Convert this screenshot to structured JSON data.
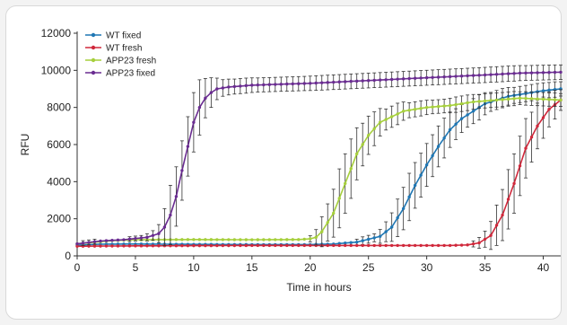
{
  "chart_data": {
    "type": "line",
    "xlabel": "Time in hours",
    "ylabel": "RFU",
    "xlim": [
      0,
      41.5
    ],
    "ylim": [
      0,
      12000
    ],
    "xticks": [
      0,
      5,
      10,
      15,
      20,
      25,
      30,
      35,
      40
    ],
    "yticks": [
      0,
      2000,
      4000,
      6000,
      8000,
      10000,
      12000
    ],
    "legend_position": "top-left",
    "grid": false,
    "x_step": 0.5,
    "series": [
      {
        "name": "WT fixed",
        "color": "#1f77b4",
        "error_bars": true,
        "anchors": [
          [
            0,
            580
          ],
          [
            2,
            630
          ],
          [
            5,
            640
          ],
          [
            10,
            620
          ],
          [
            15,
            610
          ],
          [
            20,
            610
          ],
          [
            22,
            640
          ],
          [
            24,
            740
          ],
          [
            26,
            1050
          ],
          [
            27,
            1550
          ],
          [
            28,
            2550
          ],
          [
            29,
            3800
          ],
          [
            30,
            4900
          ],
          [
            31,
            5900
          ],
          [
            32,
            6800
          ],
          [
            33,
            7400
          ],
          [
            34,
            7800
          ],
          [
            35,
            8200
          ],
          [
            36,
            8400
          ],
          [
            37,
            8600
          ],
          [
            38,
            8700
          ],
          [
            39,
            8800
          ],
          [
            40,
            8900
          ],
          [
            41.5,
            9000
          ]
        ]
      },
      {
        "name": "WT fresh",
        "color": "#d0283b",
        "error_bars": true,
        "anchors": [
          [
            0,
            520
          ],
          [
            5,
            540
          ],
          [
            10,
            550
          ],
          [
            15,
            560
          ],
          [
            20,
            560
          ],
          [
            25,
            560
          ],
          [
            30,
            560
          ],
          [
            32,
            560
          ],
          [
            33.5,
            590
          ],
          [
            34.5,
            700
          ],
          [
            35.5,
            1100
          ],
          [
            36.5,
            2200
          ],
          [
            37.5,
            3900
          ],
          [
            38.5,
            5800
          ],
          [
            39.5,
            7000
          ],
          [
            40.5,
            7900
          ],
          [
            41.5,
            8400
          ]
        ]
      },
      {
        "name": "APP23 fresh",
        "color": "#a6cf3c",
        "error_bars": true,
        "anchors": [
          [
            0,
            650
          ],
          [
            3,
            820
          ],
          [
            5,
            870
          ],
          [
            10,
            880
          ],
          [
            15,
            870
          ],
          [
            19,
            880
          ],
          [
            20,
            920
          ],
          [
            20.5,
            1000
          ],
          [
            21,
            1300
          ],
          [
            22,
            2300
          ],
          [
            23,
            3900
          ],
          [
            24,
            5500
          ],
          [
            25,
            6500
          ],
          [
            26,
            7200
          ],
          [
            27,
            7500
          ],
          [
            28,
            7800
          ],
          [
            30,
            8000
          ],
          [
            32,
            8100
          ],
          [
            34,
            8300
          ],
          [
            36,
            8400
          ],
          [
            38,
            8500
          ],
          [
            41.5,
            8400
          ]
        ]
      },
      {
        "name": "APP23 fixed",
        "color": "#6a2c91",
        "error_bars": true,
        "anchors": [
          [
            0,
            650
          ],
          [
            2,
            800
          ],
          [
            4,
            870
          ],
          [
            6,
            1000
          ],
          [
            7,
            1200
          ],
          [
            7.5,
            1550
          ],
          [
            8,
            2200
          ],
          [
            8.5,
            3200
          ],
          [
            9,
            4600
          ],
          [
            9.5,
            5900
          ],
          [
            10,
            7200
          ],
          [
            10.5,
            8000
          ],
          [
            11,
            8500
          ],
          [
            11.5,
            8800
          ],
          [
            12,
            9000
          ],
          [
            13,
            9100
          ],
          [
            15,
            9200
          ],
          [
            20,
            9300
          ],
          [
            25,
            9450
          ],
          [
            30,
            9600
          ],
          [
            35,
            9750
          ],
          [
            38,
            9850
          ],
          [
            41.5,
            9900
          ]
        ]
      }
    ]
  }
}
